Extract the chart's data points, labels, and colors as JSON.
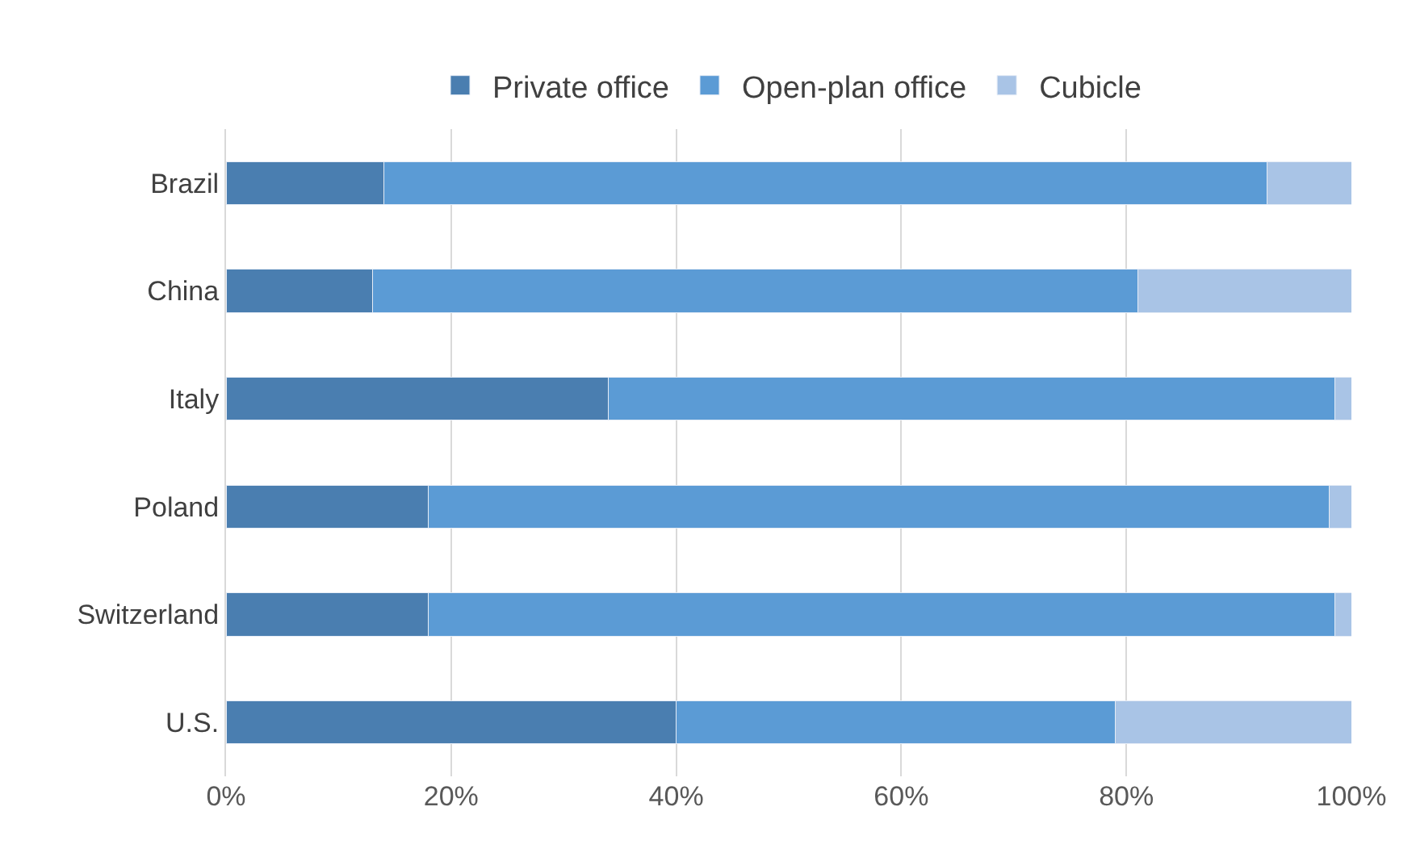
{
  "chart_data": {
    "type": "bar",
    "orientation": "horizontal",
    "stacked": true,
    "categories": [
      "Brazil",
      "China",
      "Italy",
      "Poland",
      "Switzerland",
      "U.S."
    ],
    "series": [
      {
        "name": "Private office",
        "color": "#4a7eb0",
        "values": [
          14,
          13,
          34,
          18,
          18,
          40
        ]
      },
      {
        "name": "Open-plan office",
        "color": "#5b9bd5",
        "values": [
          78.5,
          68,
          64.5,
          80,
          80.5,
          39
        ]
      },
      {
        "name": "Cubicle",
        "color": "#a9c4e6",
        "values": [
          7.5,
          19,
          1.5,
          2,
          1.5,
          21
        ]
      }
    ],
    "xlim": [
      0,
      100
    ],
    "xticks": [
      {
        "value": 0,
        "label": "0%"
      },
      {
        "value": 20,
        "label": "20%"
      },
      {
        "value": 40,
        "label": "40%"
      },
      {
        "value": 60,
        "label": "60%"
      },
      {
        "value": 80,
        "label": "80%"
      },
      {
        "value": 100,
        "label": "100%"
      }
    ],
    "grid": "x",
    "legend": "top"
  }
}
